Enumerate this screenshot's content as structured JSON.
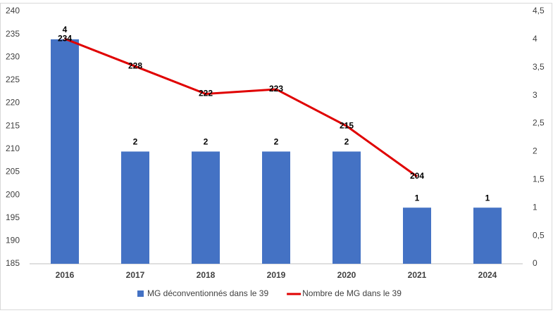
{
  "chart_data": {
    "type": "combo",
    "categories": [
      "2016",
      "2017",
      "2018",
      "2019",
      "2020",
      "2021",
      "2024"
    ],
    "series": [
      {
        "name": "MG déconventionnés dans le 39",
        "type": "bar",
        "color": "#4472c4",
        "axis": "y2",
        "values": [
          4,
          2,
          2,
          2,
          2,
          1,
          1
        ]
      },
      {
        "name": "Nombre de MG dans le 39",
        "type": "line",
        "color": "#e00000",
        "values": [
          234,
          228,
          222,
          223,
          215,
          204,
          null
        ]
      }
    ],
    "ylim": [
      185,
      240
    ],
    "yticks": [
      185,
      190,
      195,
      200,
      205,
      210,
      215,
      220,
      225,
      230,
      235,
      240
    ],
    "y2lim": [
      0,
      4.5
    ],
    "y2ticks": [
      0,
      {
        "value": 0.5,
        "label": "0,5"
      },
      1,
      {
        "value": 1.5,
        "label": "1,5"
      },
      2,
      {
        "value": 2.5,
        "label": "2,5"
      },
      3,
      {
        "value": 3.5,
        "label": "3,5"
      },
      4,
      {
        "value": 4.5,
        "label": "4,5"
      }
    ],
    "grid": false,
    "legend": "bottom"
  }
}
